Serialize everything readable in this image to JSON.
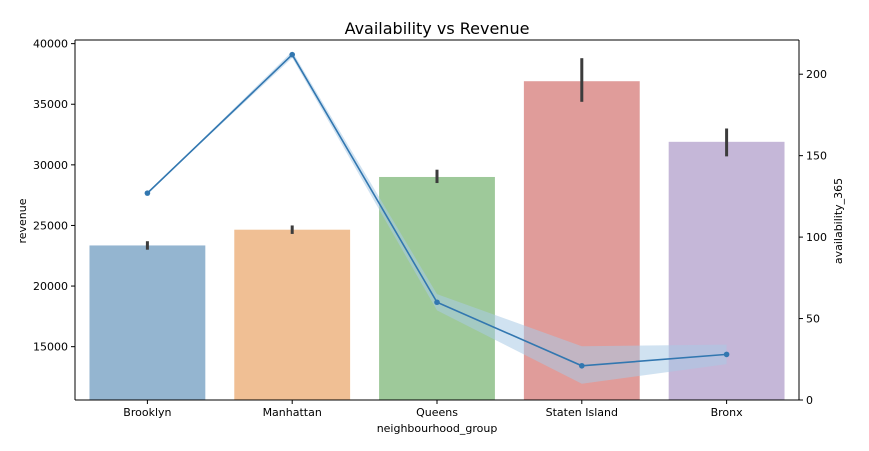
{
  "chart_data": {
    "type": "bar",
    "title": "Availability vs Revenue",
    "xlabel": "neighbourhood_group",
    "ylabel": "revenue",
    "y2label": "availability_365",
    "categories": [
      "Brooklyn",
      "Manhattan",
      "Queens",
      "Staten Island",
      "Bronx"
    ],
    "ylim": [
      10600,
      40300
    ],
    "y2lim": [
      0,
      221
    ],
    "yticks": [
      15000,
      20000,
      25000,
      30000,
      35000,
      40000
    ],
    "y2ticks": [
      0,
      50,
      100,
      150,
      200
    ],
    "grid": false,
    "series": [
      {
        "name": "revenue",
        "kind": "bar",
        "axis": "left",
        "values": [
          23350,
          24650,
          29000,
          36900,
          31900
        ],
        "error_low": [
          23000,
          24300,
          28500,
          35200,
          30700
        ],
        "error_high": [
          23700,
          25000,
          29600,
          38800,
          33000
        ]
      },
      {
        "name": "availability_365",
        "kind": "line",
        "axis": "right",
        "values": [
          127,
          212,
          60,
          21,
          28
        ],
        "ci_low": [
          127,
          210,
          55,
          10,
          22
        ],
        "ci_high": [
          127,
          214,
          65,
          33,
          34
        ]
      }
    ],
    "colors": {
      "bars": [
        "#94b5d0",
        "#f0bf94",
        "#9ec99a",
        "#e09c9a",
        "#c5b7d8"
      ],
      "line": "#3277b0",
      "band": "#a9cbe6",
      "errorbar": "#3c3c3c"
    }
  }
}
